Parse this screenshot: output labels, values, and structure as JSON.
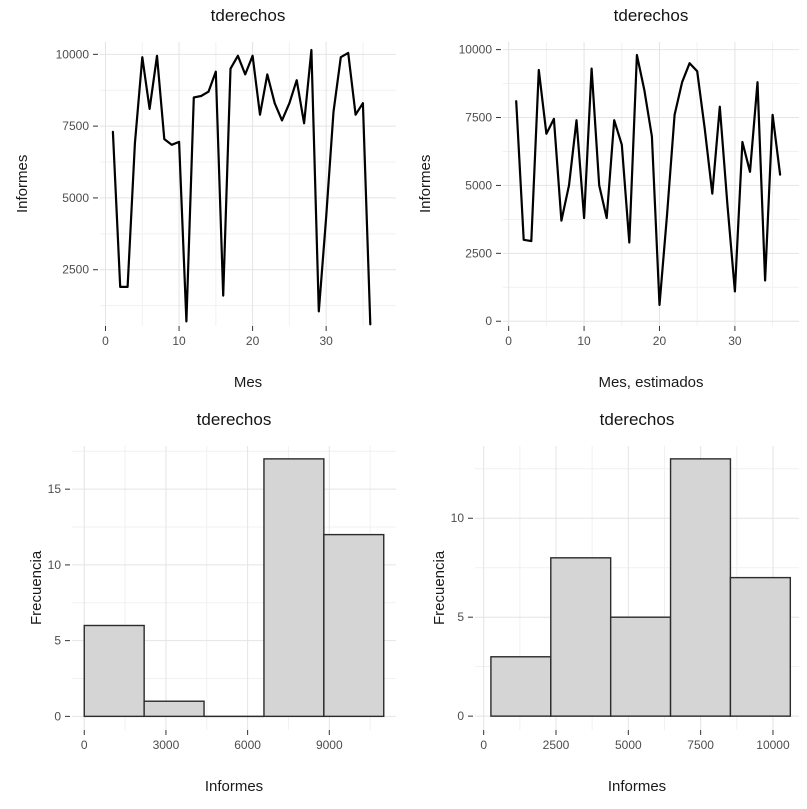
{
  "figure": {
    "background": "#ffffff",
    "panel_background": "#ffffff",
    "line_color": "#000000",
    "bar_fill": "#d5d5d5",
    "bar_stroke": "#2b2b2b",
    "grid_major_color": "#e4e4e4",
    "grid_minor_color": "#f1f1f1",
    "tick_mark_color": "#333333",
    "tick_label_color": "#4d4d4d",
    "text_color": "#1a1a1a"
  },
  "chart_data": [
    {
      "type": "line",
      "title": "tderechos",
      "xlabel": "Mes",
      "ylabel": "Informes",
      "legend": "none",
      "grid": true,
      "x": [
        1,
        2,
        3,
        4,
        5,
        6,
        7,
        8,
        9,
        10,
        11,
        12,
        13,
        14,
        15,
        16,
        17,
        18,
        19,
        20,
        21,
        22,
        23,
        24,
        25,
        26,
        27,
        28,
        29,
        30,
        31,
        32,
        33,
        34,
        35,
        36
      ],
      "y": [
        7300,
        1900,
        1900,
        6900,
        9900,
        8100,
        9950,
        7050,
        6850,
        6950,
        700,
        8500,
        8550,
        8700,
        9400,
        1600,
        9500,
        9950,
        9300,
        9950,
        7900,
        9300,
        8300,
        7700,
        8300,
        9100,
        7600,
        10150,
        1050,
        4300,
        8000,
        9900,
        10050,
        7900,
        8300,
        600
      ],
      "xticks": [
        0,
        10,
        20,
        30
      ],
      "xticks_minor": [
        5,
        15,
        25,
        35
      ],
      "yticks": [
        2500,
        5000,
        7500,
        10000
      ],
      "yticks_minor": [
        1250,
        3750,
        6250,
        8750
      ],
      "xlim": [
        -0.75,
        39.5
      ],
      "ylim": [
        540,
        10430
      ]
    },
    {
      "type": "line",
      "title": "tderechos",
      "xlabel": "Mes, estimados",
      "ylabel": "Informes",
      "legend": "none",
      "grid": true,
      "x": [
        1,
        2,
        3,
        4,
        5,
        6,
        7,
        8,
        9,
        10,
        11,
        12,
        13,
        14,
        15,
        16,
        17,
        18,
        19,
        20,
        21,
        22,
        23,
        24,
        25,
        26,
        27,
        28,
        29,
        30,
        31,
        32,
        33,
        34,
        35,
        36
      ],
      "y": [
        8100,
        3000,
        2950,
        9250,
        6900,
        7450,
        3700,
        5000,
        7400,
        3800,
        9300,
        5000,
        3800,
        7400,
        6500,
        2900,
        9800,
        8500,
        6800,
        600,
        3900,
        7600,
        8800,
        9500,
        9200,
        7100,
        4700,
        7900,
        4300,
        1100,
        6600,
        5500,
        8800,
        1500,
        7600,
        5400
      ],
      "xticks": [
        0,
        10,
        20,
        30
      ],
      "xticks_minor": [
        5,
        15,
        25,
        35
      ],
      "yticks": [
        0,
        2500,
        5000,
        7500,
        10000
      ],
      "yticks_minor": [
        1250,
        3750,
        6250,
        8750
      ],
      "xlim": [
        -0.75,
        38.5
      ],
      "ylim": [
        -175,
        10280
      ]
    },
    {
      "type": "bar",
      "subtype": "histogram",
      "title": "tderechos",
      "xlabel": "Informes",
      "ylabel": "Frecuencia",
      "legend": "none",
      "grid": true,
      "bin_start": 0,
      "bin_width": 2200,
      "bin_edges": [
        0,
        2200,
        4400,
        6600,
        8800,
        11000
      ],
      "counts": [
        6,
        1,
        0,
        17,
        12
      ],
      "xticks": [
        0,
        3000,
        6000,
        9000
      ],
      "xticks_minor": [
        1500,
        4500,
        7500,
        10500
      ],
      "yticks": [
        0,
        5,
        10,
        15
      ],
      "yticks_minor": [
        2.5,
        7.5,
        12.5,
        17.5
      ],
      "xlim": [
        -450,
        11450
      ],
      "ylim": [
        -0.9,
        17.85
      ]
    },
    {
      "type": "bar",
      "subtype": "histogram",
      "title": "tderechos",
      "xlabel": "Informes",
      "ylabel": "Frecuencia",
      "legend": "none",
      "grid": true,
      "bin_start": 250,
      "bin_width": 2070,
      "bin_edges": [
        250,
        2320,
        4390,
        6460,
        8530,
        10600
      ],
      "counts": [
        3,
        8,
        5,
        13,
        7
      ],
      "xticks": [
        0,
        2500,
        5000,
        7500,
        10000
      ],
      "xticks_minor": [
        1250,
        3750,
        6250,
        8750
      ],
      "yticks": [
        0,
        5,
        10
      ],
      "yticks_minor": [
        2.5,
        7.5,
        12.5
      ],
      "xlim": [
        -300,
        10900
      ],
      "ylim": [
        -0.7,
        13.65
      ]
    }
  ]
}
